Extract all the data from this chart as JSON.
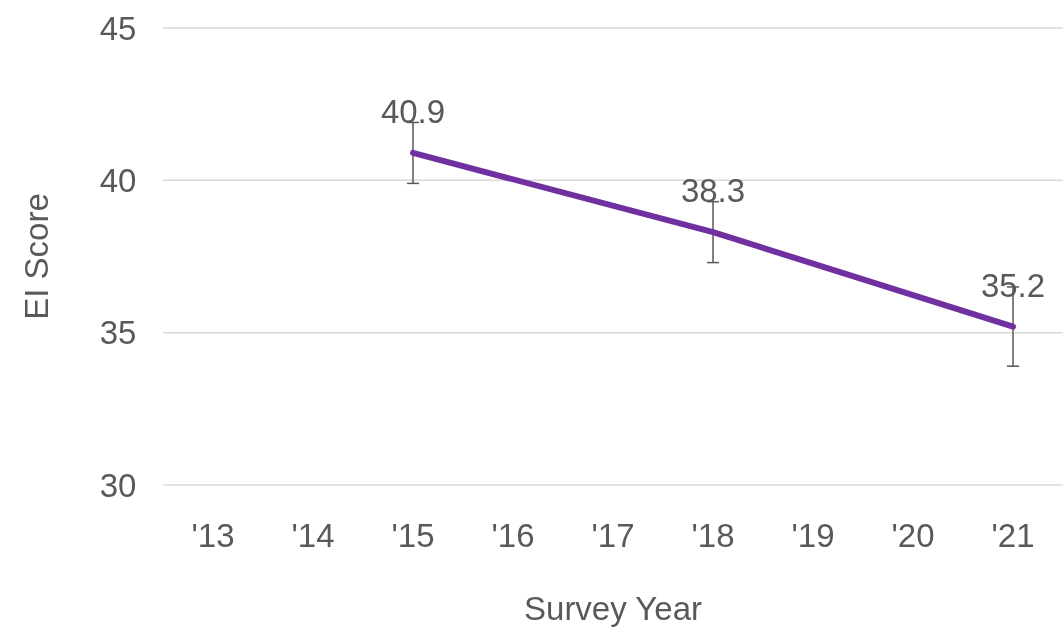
{
  "chart_data": {
    "type": "line",
    "xlabel": "Survey Year",
    "ylabel": "EI Score",
    "categories": [
      "'13",
      "'14",
      "'15",
      "'16",
      "'17",
      "'18",
      "'19",
      "'20",
      "'21"
    ],
    "series": [
      {
        "color": "#7030a0",
        "values": [
          null,
          null,
          40.9,
          null,
          null,
          38.3,
          null,
          null,
          35.2
        ],
        "errors": [
          null,
          null,
          1.0,
          null,
          null,
          1.0,
          null,
          null,
          1.3
        ]
      }
    ],
    "ylim": [
      30,
      45
    ],
    "yticks": [
      30,
      35,
      40,
      45
    ],
    "grid": "y",
    "data_labels": true,
    "marker": "none"
  }
}
